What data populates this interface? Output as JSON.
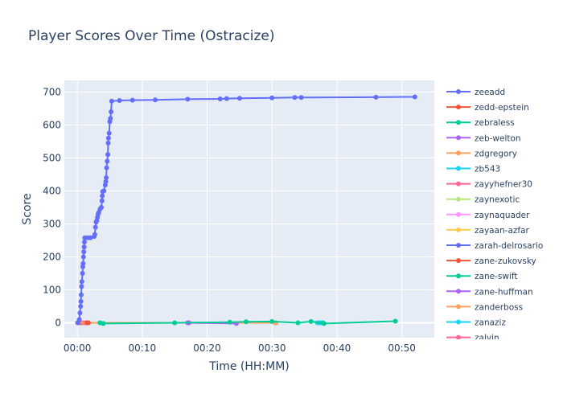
{
  "chart_data": {
    "type": "line",
    "title": "Player Scores Over Time (Ostracize)",
    "xlabel": "Time (HH:MM)",
    "ylabel": "Score",
    "xlim_minutes": [
      -2,
      55
    ],
    "ylim": [
      -45,
      735
    ],
    "x_ticks": [
      {
        "minutes": 0,
        "label": "00:00"
      },
      {
        "minutes": 10,
        "label": "00:10"
      },
      {
        "minutes": 20,
        "label": "00:20"
      },
      {
        "minutes": 30,
        "label": "00:30"
      },
      {
        "minutes": 40,
        "label": "00:40"
      },
      {
        "minutes": 50,
        "label": "00:50"
      }
    ],
    "y_ticks": [
      0,
      100,
      200,
      300,
      400,
      500,
      600,
      700
    ],
    "grid": true,
    "legend_position": "right",
    "series": [
      {
        "name": "zeeadd",
        "color": "#636efa",
        "points": [
          [
            0.1,
            0
          ],
          [
            0.3,
            10
          ],
          [
            0.4,
            30
          ],
          [
            0.5,
            50
          ],
          [
            0.55,
            65
          ],
          [
            0.6,
            85
          ],
          [
            0.65,
            110
          ],
          [
            0.7,
            125
          ],
          [
            0.8,
            150
          ],
          [
            0.85,
            170
          ],
          [
            0.9,
            180
          ],
          [
            0.95,
            200
          ],
          [
            1.0,
            215
          ],
          [
            1.05,
            230
          ],
          [
            1.1,
            245
          ],
          [
            1.15,
            258
          ],
          [
            1.6,
            258
          ],
          [
            2.0,
            258
          ],
          [
            2.6,
            262
          ],
          [
            2.7,
            268
          ],
          [
            2.8,
            290
          ],
          [
            2.9,
            305
          ],
          [
            3.0,
            310
          ],
          [
            3.1,
            320
          ],
          [
            3.2,
            330
          ],
          [
            3.3,
            335
          ],
          [
            3.5,
            345
          ],
          [
            3.7,
            350
          ],
          [
            3.8,
            370
          ],
          [
            3.85,
            385
          ],
          [
            3.9,
            398
          ],
          [
            4.1,
            400
          ],
          [
            4.3,
            418
          ],
          [
            4.4,
            428
          ],
          [
            4.45,
            440
          ],
          [
            4.5,
            470
          ],
          [
            4.6,
            490
          ],
          [
            4.7,
            510
          ],
          [
            4.75,
            545
          ],
          [
            4.8,
            560
          ],
          [
            4.9,
            575
          ],
          [
            5.0,
            610
          ],
          [
            5.1,
            620
          ],
          [
            5.2,
            640
          ],
          [
            5.3,
            672
          ],
          [
            6.5,
            674
          ],
          [
            8.5,
            675
          ],
          [
            12.0,
            676
          ],
          [
            17.0,
            678
          ],
          [
            22.0,
            679
          ],
          [
            23.0,
            680
          ],
          [
            25.0,
            681
          ],
          [
            30.0,
            682
          ],
          [
            33.5,
            683
          ],
          [
            34.5,
            683
          ],
          [
            46.0,
            684
          ],
          [
            52.0,
            685
          ]
        ]
      },
      {
        "name": "zedd-epstein",
        "color": "#ef553b",
        "points": [
          [
            1.5,
            0
          ],
          [
            1.7,
            0
          ]
        ]
      },
      {
        "name": "zebraless",
        "color": "#00cc96",
        "points": [
          [
            3.5,
            0
          ],
          [
            4.0,
            -2
          ],
          [
            15.0,
            0
          ],
          [
            23.5,
            2
          ],
          [
            26.0,
            3
          ],
          [
            30.0,
            4
          ],
          [
            34.0,
            0
          ],
          [
            36.0,
            4
          ],
          [
            38.0,
            -2
          ],
          [
            49.0,
            5
          ]
        ]
      },
      {
        "name": "zeb-welton",
        "color": "#ab63fa",
        "points": [
          [
            17.0,
            0
          ],
          [
            24.5,
            -2
          ]
        ]
      },
      {
        "name": "zdgregory",
        "color": "#ffa15a",
        "points": [
          [
            0.0,
            0
          ],
          [
            30.5,
            0
          ]
        ]
      },
      {
        "name": "zb543",
        "color": "#19d3f3",
        "points": [
          [
            37.0,
            0
          ],
          [
            37.5,
            0
          ]
        ]
      },
      {
        "name": "zayyhefner30",
        "color": "#ff6692",
        "points": [
          [
            0.5,
            0
          ],
          [
            1.0,
            0
          ]
        ]
      },
      {
        "name": "zaynexotic",
        "color": "#b6e880",
        "points": [
          [
            0.2,
            0
          ]
        ]
      },
      {
        "name": "zaynaquader",
        "color": "#ff97ff",
        "points": [
          [
            0.3,
            0
          ]
        ]
      },
      {
        "name": "zayaan-azfar",
        "color": "#fecb52",
        "points": [
          [
            0.4,
            0
          ]
        ]
      },
      {
        "name": "zarah-delrosario",
        "color": "#636efa",
        "points": [
          [
            0.2,
            0
          ],
          [
            0.5,
            0
          ]
        ]
      },
      {
        "name": "zane-zukovsky",
        "color": "#ef553b",
        "points": [
          [
            1.4,
            0
          ]
        ]
      },
      {
        "name": "zane-swift",
        "color": "#00cc96",
        "points": [
          [
            37.8,
            0
          ]
        ]
      },
      {
        "name": "zane-huffman",
        "color": "#ab63fa",
        "points": [
          [
            17.2,
            0
          ]
        ]
      },
      {
        "name": "zanderboss",
        "color": "#ffa15a",
        "points": [
          [
            30.6,
            0
          ]
        ]
      },
      {
        "name": "zanaziz",
        "color": "#19d3f3",
        "points": [
          [
            37.3,
            0
          ]
        ]
      },
      {
        "name": "zalvin",
        "color": "#ff6692",
        "points": [
          [
            0.6,
            0
          ]
        ]
      }
    ]
  }
}
